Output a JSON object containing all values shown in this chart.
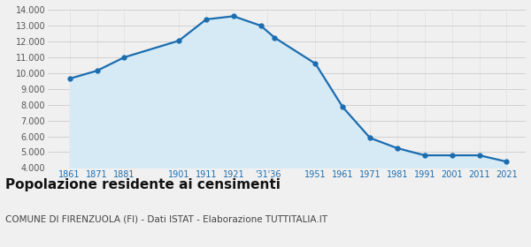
{
  "years": [
    1861,
    1871,
    1881,
    1901,
    1911,
    1921,
    1931,
    1936,
    1951,
    1961,
    1971,
    1981,
    1991,
    2001,
    2011,
    2021
  ],
  "population": [
    9650,
    10150,
    11000,
    12050,
    13400,
    13600,
    13000,
    12250,
    10600,
    7850,
    5900,
    5250,
    4800,
    4800,
    4800,
    4400
  ],
  "x_tick_labels": [
    "1861",
    "1871",
    "1881",
    "1901",
    "1911",
    "1921",
    "'31'36",
    "1951",
    "1961",
    "1971",
    "1981",
    "1991",
    "2001",
    "2011",
    "2021"
  ],
  "x_tick_positions": [
    1861,
    1871,
    1881,
    1901,
    1911,
    1921,
    1933.5,
    1951,
    1961,
    1971,
    1981,
    1991,
    2001,
    2011,
    2021
  ],
  "ylim": [
    4000,
    14000
  ],
  "yticks": [
    4000,
    5000,
    6000,
    7000,
    8000,
    9000,
    10000,
    11000,
    12000,
    13000,
    14000
  ],
  "xlim": [
    1853,
    2028
  ],
  "line_color": "#1b6db0",
  "fill_color": "#d6eaf5",
  "marker_color": "#1b6db0",
  "grid_color": "#cccccc",
  "bg_color": "#f0f0f0",
  "title": "Popolazione residente ai censimenti",
  "subtitle": "COMUNE DI FIRENZUOLA (FI) - Dati ISTAT - Elaborazione TUTTITALIA.IT",
  "title_fontsize": 11,
  "subtitle_fontsize": 7.5,
  "tick_fontsize": 7,
  "ytick_color": "#555555",
  "xtick_color": "#1b6db0"
}
